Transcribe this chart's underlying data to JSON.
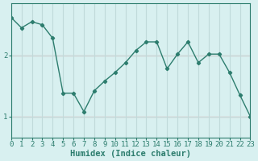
{
  "x": [
    0,
    1,
    2,
    3,
    4,
    5,
    6,
    7,
    8,
    9,
    10,
    11,
    12,
    13,
    14,
    15,
    16,
    17,
    18,
    19,
    20,
    21,
    22,
    23
  ],
  "y": [
    2.62,
    2.45,
    2.55,
    2.5,
    2.28,
    1.38,
    1.38,
    1.08,
    1.42,
    1.58,
    1.72,
    1.88,
    2.08,
    2.22,
    2.22,
    1.78,
    2.02,
    2.22,
    1.88,
    2.02,
    2.02,
    1.72,
    1.35,
    1.0
  ],
  "xlabel": "Humidex (Indice chaleur)",
  "ylabel": "",
  "xlim": [
    0,
    23
  ],
  "ylim": [
    0.65,
    2.85
  ],
  "yticks": [
    1,
    2
  ],
  "xticks": [
    0,
    1,
    2,
    3,
    4,
    5,
    6,
    7,
    8,
    9,
    10,
    11,
    12,
    13,
    14,
    15,
    16,
    17,
    18,
    19,
    20,
    21,
    22,
    23
  ],
  "line_color": "#2d7d6e",
  "marker": "D",
  "bg_color": "#d8f0f0",
  "grid_color": "#c0dada",
  "hline_color": "#ff9999",
  "label_fontsize": 7.5,
  "tick_fontsize": 6.5
}
